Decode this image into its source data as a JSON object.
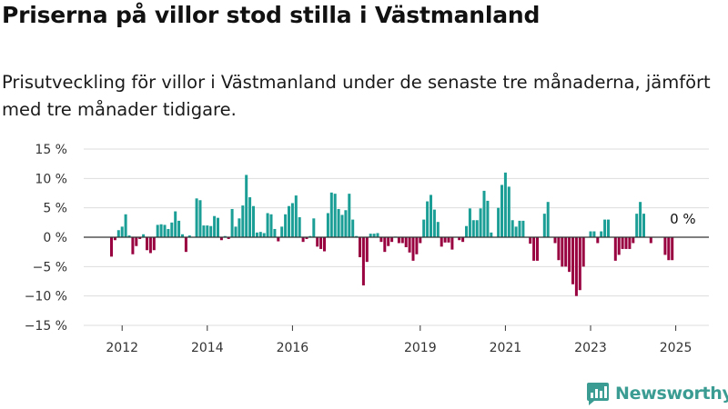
{
  "header": {
    "title": "Priserna på villor stod stilla i Västmanland",
    "subtitle": "Prisutveckling för villor i Västmanland under de senaste tre månaderna, jämfört med tre månader tidigare."
  },
  "branding": {
    "logo_text": "Newsworthy",
    "logo_icon": "newsworthy-bar-logo-icon",
    "color": "#3a9c92"
  },
  "colors": {
    "positive": "#1a9e96",
    "negative": "#990040",
    "grid": "#dddddd",
    "zero_line": "#333333"
  },
  "chart_data": {
    "type": "bar",
    "title": "Priserna på villor stod stilla i Västmanland",
    "subtitle": "Prisutveckling för villor i Västmanland under de senaste tre månaderna, jämfört med tre månader tidigare.",
    "unit": "%",
    "x_unit": "month",
    "x_start": "2011-10",
    "ylim": [
      -15,
      15
    ],
    "yticks": [
      15,
      10,
      5,
      0,
      -5,
      -10,
      -15
    ],
    "ytick_labels": [
      "15 %",
      "10 %",
      "5 %",
      "0 %",
      "−5 %",
      "−10 %",
      "−15 %"
    ],
    "xticks": [
      {
        "label": "2012",
        "date": "2012-01"
      },
      {
        "label": "2014",
        "date": "2014-01"
      },
      {
        "label": "2016",
        "date": "2016-01"
      },
      {
        "label": "2019",
        "date": "2019-01"
      },
      {
        "label": "2021",
        "date": "2021-01"
      },
      {
        "label": "2023",
        "date": "2023-01"
      },
      {
        "label": "2025",
        "date": "2025-01"
      }
    ],
    "grid": true,
    "legend": "none",
    "annotations": [
      {
        "label": "0 %",
        "date": "2025-03",
        "value": 0
      }
    ],
    "values": [
      -3.3,
      -0.5,
      1.2,
      1.8,
      3.9,
      0.3,
      -2.9,
      -1.5,
      -0.3,
      0.5,
      -2.2,
      -2.7,
      -2.2,
      2.1,
      2.2,
      2.1,
      1.4,
      2.5,
      4.4,
      2.8,
      0.5,
      -2.5,
      0.3,
      0,
      6.6,
      6.3,
      2.0,
      2.0,
      1.9,
      3.6,
      3.3,
      -0.5,
      0.2,
      -0.3,
      4.8,
      1.8,
      3.2,
      5.4,
      10.6,
      6.8,
      5.3,
      0.8,
      0.9,
      0.7,
      4.1,
      3.9,
      1.4,
      -0.7,
      1.8,
      3.9,
      5.3,
      5.8,
      7.1,
      3.4,
      -0.8,
      -0.3,
      0.2,
      3.2,
      -1.6,
      -2.0,
      -2.4,
      4.1,
      7.6,
      7.4,
      4.8,
      3.8,
      4.6,
      7.4,
      3.0,
      0.2,
      -3.4,
      -8.2,
      -4.2,
      0.6,
      0.6,
      0.7,
      -0.8,
      -2.5,
      -1.5,
      -0.8,
      0.1,
      -1.0,
      -1.0,
      -1.7,
      -2.6,
      -4.0,
      -2.9,
      -1.0,
      3.0,
      6.1,
      7.2,
      4.7,
      2.6,
      -1.6,
      -0.9,
      -0.9,
      -2.1,
      0,
      -0.5,
      -0.8,
      1.9,
      4.9,
      2.9,
      2.9,
      4.9,
      7.9,
      6.2,
      0.8,
      0,
      5.0,
      8.9,
      11.0,
      8.6,
      2.9,
      1.8,
      2.8,
      2.8,
      0,
      -1.1,
      -4.0,
      -4.0,
      0,
      4.0,
      6.0,
      0,
      -1.0,
      -3.9,
      -5.0,
      -5.0,
      -5.9,
      -8.0,
      -10.0,
      -9.0,
      -5.0,
      0,
      1.0,
      1.0,
      -1.0,
      1.0,
      3.0,
      3.0,
      0,
      -4.0,
      -3.0,
      -2.0,
      -2.0,
      -2.0,
      -1.0,
      4.0,
      6.0,
      4.0,
      0,
      -1.0,
      0,
      0,
      0,
      -3.0,
      -3.9,
      -3.9,
      0
    ]
  }
}
